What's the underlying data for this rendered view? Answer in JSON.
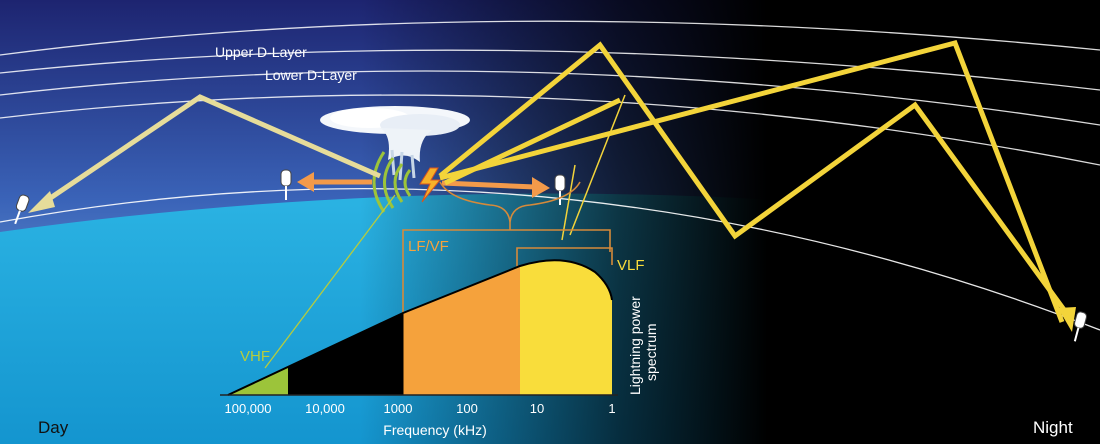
{
  "layers": {
    "upper": "Upper D-Layer",
    "lower": "Lower D-Layer"
  },
  "bands": {
    "vhf": "VHF",
    "lf_vf": "LF/VF",
    "vlf": "VLF"
  },
  "spectrum": {
    "ylabel_line1": "Lightning power",
    "ylabel_line2": "spectrum",
    "xlabel": "Frequency (kHz)",
    "ticks": [
      "100,000",
      "10,000",
      "1000",
      "100",
      "10",
      "1"
    ]
  },
  "corners": {
    "day": "Day",
    "night": "Night"
  },
  "colors": {
    "sky_top": "#1f2a78",
    "sky_mid": "#4fa3d9",
    "ground": "#19a6dc",
    "ray": "#f3d43a",
    "ray_faded": "#e6dc9a",
    "arrow_orange": "#f39a4a",
    "vhf_green": "#9cc43a",
    "lf_orange": "#f5a23c",
    "vlf_yellow": "#f9dd3b",
    "bracket": "#d68a3a"
  }
}
